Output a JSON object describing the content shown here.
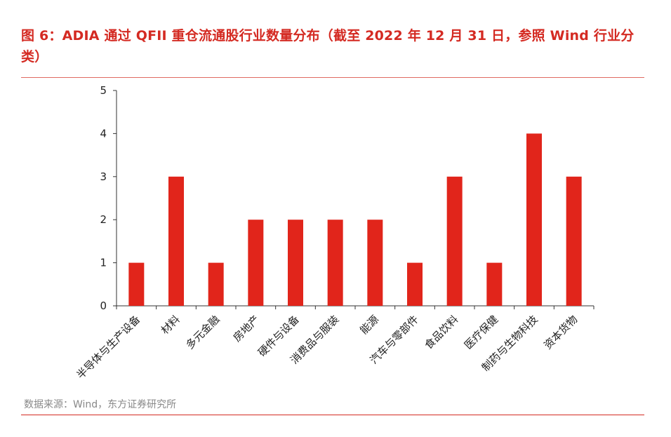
{
  "header": {
    "title": "图 6：ADIA 通过 QFII 重仓流通股行业数量分布（截至 2022 年 12 月 31 日，参照 Wind 行业分类）"
  },
  "footer": {
    "source": "数据来源：Wind，东方证券研究所"
  },
  "colors": {
    "accent": "#d42a22",
    "bar": "#e1251b",
    "axis": "#333333",
    "source_text": "#888888"
  },
  "chart_data": {
    "type": "bar",
    "categories": [
      "半导体与生产设备",
      "材料",
      "多元金融",
      "房地产",
      "硬件与设备",
      "消费品与服装",
      "能源",
      "汽车与零部件",
      "食品饮料",
      "医疗保健",
      "制药与生物科技",
      "资本货物"
    ],
    "values": [
      1,
      3,
      1,
      2,
      2,
      2,
      2,
      1,
      3,
      1,
      4,
      3
    ],
    "ylim": [
      0,
      5
    ],
    "yticks": [
      0,
      1,
      2,
      3,
      4,
      5
    ],
    "grid": false,
    "legend": "none",
    "title": "",
    "xlabel": "",
    "ylabel": ""
  }
}
